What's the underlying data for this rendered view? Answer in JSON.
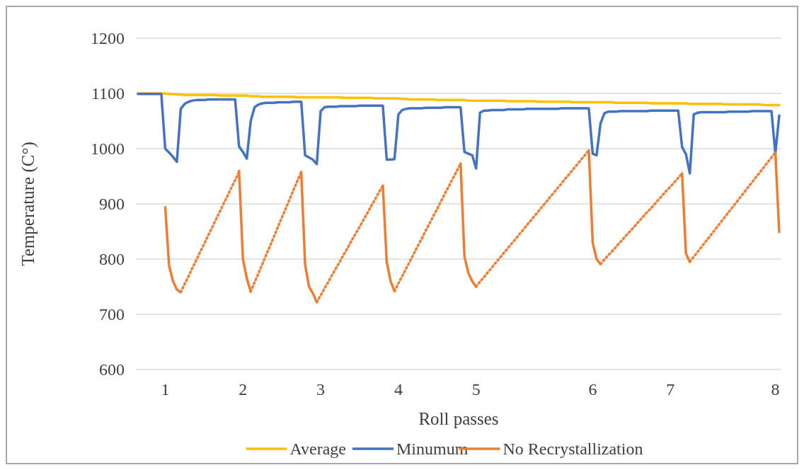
{
  "chart_data": {
    "type": "line",
    "xlabel": "Roll passes",
    "ylabel": "Temperature (C°)",
    "categories": [
      null,
      null,
      null,
      null,
      null,
      null,
      null,
      "1",
      null,
      null,
      null,
      null,
      null,
      null,
      null,
      null,
      null,
      null,
      null,
      null,
      null,
      null,
      null,
      null,
      null,
      null,
      null,
      "2",
      null,
      null,
      null,
      null,
      null,
      null,
      null,
      null,
      null,
      null,
      null,
      null,
      null,
      null,
      null,
      null,
      null,
      null,
      null,
      "3",
      null,
      null,
      null,
      null,
      null,
      null,
      null,
      null,
      null,
      null,
      null,
      null,
      null,
      null,
      null,
      null,
      null,
      null,
      null,
      "4",
      null,
      null,
      null,
      null,
      null,
      null,
      null,
      null,
      null,
      null,
      null,
      null,
      null,
      null,
      null,
      null,
      null,
      null,
      null,
      "5",
      null,
      null,
      null,
      null,
      null,
      null,
      null,
      null,
      null,
      null,
      null,
      null,
      null,
      null,
      null,
      null,
      null,
      null,
      null,
      null,
      null,
      null,
      null,
      null,
      null,
      null,
      null,
      null,
      null,
      "6",
      null,
      null,
      null,
      null,
      null,
      null,
      null,
      null,
      null,
      null,
      null,
      null,
      null,
      null,
      null,
      null,
      null,
      null,
      null,
      "7",
      null,
      null,
      null,
      null,
      null,
      null,
      null,
      null,
      null,
      null,
      null,
      null,
      null,
      null,
      null,
      null,
      null,
      null,
      null,
      null,
      null,
      null,
      null,
      null,
      null,
      null,
      "8",
      null
    ],
    "ylim": [
      600,
      1200
    ],
    "yticks": [
      600,
      700,
      800,
      900,
      1000,
      1100,
      1200
    ],
    "grid": "y",
    "legend": "bottom",
    "marker": "none",
    "series": [
      {
        "name": "Average",
        "color": "#ffc000",
        "values": [
          1100,
          1100,
          1100,
          1100,
          1100,
          1100,
          1100,
          1100,
          1099,
          1099,
          1098,
          1098,
          1097,
          1097,
          1097,
          1097,
          1097,
          1097,
          1097,
          1097,
          1097,
          1096,
          1096,
          1096,
          1096,
          1096,
          1096,
          1096,
          1096,
          1095,
          1095,
          1095,
          1094,
          1094,
          1094,
          1094,
          1094,
          1094,
          1094,
          1094,
          1094,
          1093,
          1093,
          1093,
          1093,
          1093,
          1093,
          1093,
          1093,
          1093,
          1093,
          1093,
          1093,
          1092,
          1092,
          1092,
          1092,
          1092,
          1092,
          1092,
          1092,
          1091,
          1091,
          1091,
          1091,
          1091,
          1091,
          1091,
          1090,
          1090,
          1089,
          1089,
          1089,
          1089,
          1089,
          1089,
          1089,
          1088,
          1088,
          1088,
          1088,
          1088,
          1088,
          1088,
          1088,
          1087,
          1087,
          1087,
          1087,
          1087,
          1087,
          1087,
          1087,
          1087,
          1087,
          1086,
          1086,
          1086,
          1086,
          1086,
          1086,
          1086,
          1086,
          1085,
          1085,
          1085,
          1085,
          1085,
          1085,
          1085,
          1085,
          1085,
          1084,
          1084,
          1084,
          1084,
          1084,
          1084,
          1084,
          1084,
          1084,
          1084,
          1084,
          1083,
          1083,
          1083,
          1083,
          1083,
          1083,
          1083,
          1083,
          1083,
          1082,
          1082,
          1082,
          1082,
          1082,
          1082,
          1082,
          1082,
          1082,
          1082,
          1081,
          1081,
          1081,
          1081,
          1081,
          1081,
          1081,
          1081,
          1081,
          1080,
          1080,
          1080,
          1080,
          1080,
          1080,
          1080,
          1080,
          1080,
          1080,
          1079,
          1079,
          1079,
          1079,
          1079
        ]
      },
      {
        "name": "Minumum",
        "color": "#4472c4",
        "values": [
          1099,
          1099,
          1099,
          1099,
          1099,
          1099,
          1099,
          1000,
          993,
          985,
          976,
          1072,
          1081,
          1085,
          1087,
          1088,
          1088,
          1088,
          1089,
          1089,
          1089,
          1089,
          1089,
          1089,
          1089,
          1089,
          1004,
          994,
          982,
          1050,
          1075,
          1080,
          1082,
          1083,
          1083,
          1083,
          1084,
          1084,
          1084,
          1084,
          1085,
          1085,
          1085,
          988,
          984,
          980,
          972,
          1068,
          1075,
          1076,
          1076,
          1076,
          1077,
          1077,
          1077,
          1077,
          1077,
          1078,
          1078,
          1078,
          1078,
          1078,
          1078,
          1078,
          980,
          980,
          981,
          1062,
          1070,
          1072,
          1073,
          1073,
          1073,
          1073,
          1074,
          1074,
          1074,
          1074,
          1074,
          1075,
          1075,
          1075,
          1075,
          1075,
          994,
          991,
          988,
          964,
          1065,
          1069,
          1069,
          1070,
          1070,
          1070,
          1070,
          1071,
          1071,
          1071,
          1071,
          1071,
          1072,
          1072,
          1072,
          1072,
          1072,
          1072,
          1072,
          1072,
          1072,
          1073,
          1073,
          1073,
          1073,
          1073,
          1073,
          1073,
          1073,
          991,
          988,
          1045,
          1064,
          1067,
          1067,
          1067,
          1068,
          1068,
          1068,
          1068,
          1068,
          1068,
          1068,
          1068,
          1069,
          1069,
          1069,
          1069,
          1069,
          1069,
          1069,
          1069,
          1003,
          990,
          955,
          1062,
          1065,
          1066,
          1066,
          1066,
          1066,
          1066,
          1066,
          1066,
          1067,
          1067,
          1067,
          1067,
          1067,
          1067,
          1068,
          1068,
          1068,
          1068,
          1068,
          1068,
          991,
          1060
        ]
      },
      {
        "name": "No Recrystallization",
        "color": "#ed7d31",
        "values": [
          null,
          null,
          null,
          null,
          null,
          null,
          null,
          894,
          788,
          760,
          745,
          740,
          null,
          null,
          null,
          null,
          null,
          null,
          null,
          null,
          null,
          null,
          null,
          null,
          null,
          null,
          960,
          800,
          765,
          741,
          null,
          null,
          null,
          null,
          null,
          null,
          null,
          null,
          null,
          null,
          null,
          null,
          958,
          790,
          750,
          738,
          722,
          null,
          null,
          null,
          null,
          null,
          null,
          null,
          null,
          null,
          null,
          null,
          null,
          null,
          null,
          null,
          null,
          933,
          795,
          760,
          742,
          null,
          null,
          null,
          null,
          null,
          null,
          null,
          null,
          null,
          null,
          null,
          null,
          null,
          null,
          null,
          null,
          973,
          805,
          775,
          760,
          750,
          null,
          null,
          null,
          null,
          null,
          null,
          null,
          null,
          null,
          null,
          null,
          null,
          null,
          null,
          null,
          null,
          null,
          null,
          null,
          null,
          null,
          null,
          null,
          null,
          null,
          null,
          null,
          null,
          997,
          830,
          800,
          791,
          null,
          null,
          null,
          null,
          null,
          null,
          null,
          null,
          null,
          null,
          null,
          null,
          null,
          null,
          null,
          null,
          null,
          null,
          null,
          null,
          955,
          810,
          795,
          null,
          null,
          null,
          null,
          null,
          null,
          null,
          null,
          null,
          null,
          null,
          null,
          null,
          null,
          null,
          null,
          null,
          null,
          null,
          null,
          null,
          993,
          849
        ]
      },
      {
        "color": "#ee7f35",
        "line_style": "dotted",
        "values": [
          null,
          null,
          null,
          null,
          null,
          null,
          null,
          null,
          null,
          null,
          null,
          740,
          755,
          769,
          784,
          798,
          813,
          827,
          842,
          856,
          871,
          885,
          900,
          914,
          929,
          943,
          958,
          null,
          null,
          741,
          758,
          774,
          791,
          808,
          824,
          841,
          858,
          875,
          891,
          908,
          925,
          941,
          958,
          null,
          null,
          null,
          722,
          734,
          747,
          759,
          772,
          784,
          796,
          809,
          821,
          834,
          846,
          858,
          871,
          883,
          896,
          908,
          921,
          933,
          null,
          null,
          742,
          756,
          769,
          783,
          796,
          810,
          824,
          837,
          851,
          864,
          878,
          891,
          905,
          919,
          932,
          946,
          959,
          973,
          null,
          null,
          null,
          750,
          759,
          767,
          776,
          784,
          793,
          801,
          810,
          818,
          827,
          835,
          844,
          852,
          861,
          869,
          878,
          886,
          895,
          903,
          912,
          920,
          929,
          937,
          946,
          954,
          963,
          971,
          980,
          988,
          997,
          null,
          null,
          791,
          799,
          807,
          814,
          822,
          830,
          838,
          846,
          853,
          861,
          869,
          877,
          885,
          892,
          900,
          908,
          916,
          924,
          931,
          939,
          947,
          955,
          null,
          795,
          804,
          813,
          822,
          831,
          840,
          849,
          858,
          867,
          876,
          885,
          894,
          903,
          912,
          921,
          930,
          939,
          948,
          957,
          966,
          975,
          984,
          993,
          null
        ]
      }
    ]
  }
}
